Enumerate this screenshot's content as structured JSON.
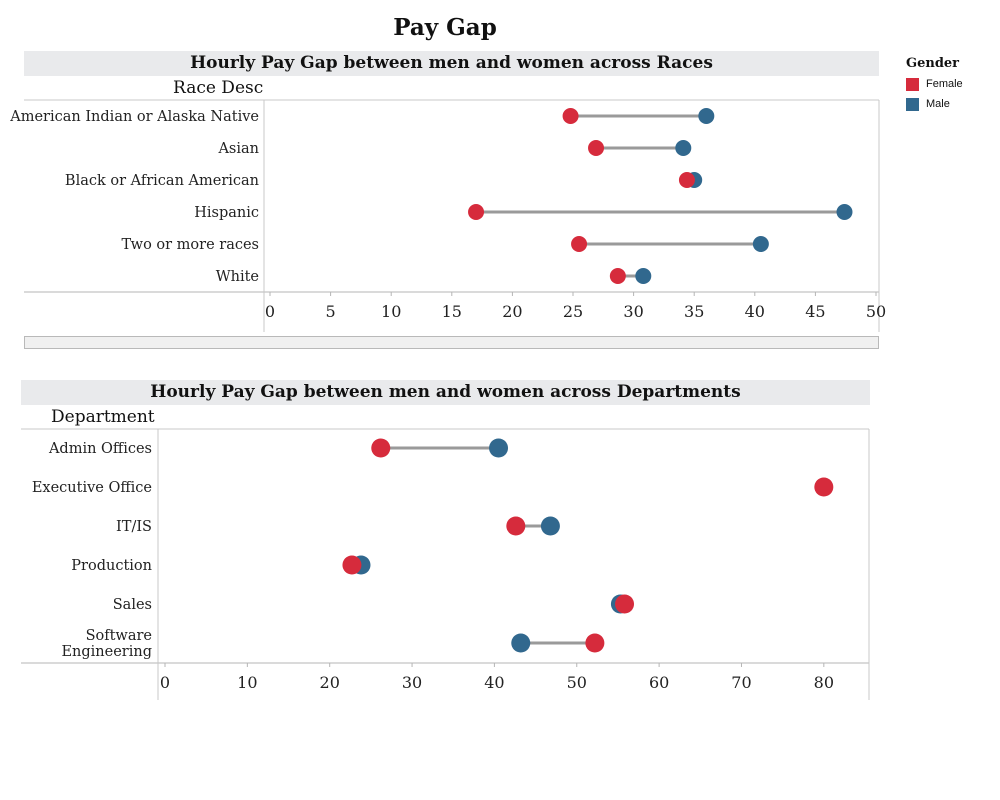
{
  "page_title": "Pay Gap",
  "legend": {
    "title": "Gender",
    "items": [
      {
        "label": "Female",
        "color": "#d62b3c"
      },
      {
        "label": "Male",
        "color": "#31688e"
      }
    ]
  },
  "chart_data": [
    {
      "type": "dumbbell",
      "title": "Hourly Pay Gap between men and women across Races",
      "row_header": "Race Desc",
      "categories": [
        "American Indian or Alaska Native",
        "Asian",
        "Black or African American",
        "Hispanic",
        "Two or more races",
        "White"
      ],
      "series": [
        {
          "name": "Female",
          "color": "#d62b3c",
          "values": [
            24.8,
            26.9,
            34.4,
            17.0,
            25.5,
            28.7
          ]
        },
        {
          "name": "Male",
          "color": "#31688e",
          "values": [
            36.0,
            34.1,
            35.0,
            47.4,
            40.5,
            30.8
          ]
        }
      ],
      "xlim": [
        0,
        50
      ],
      "xticks": [
        "0",
        "5",
        "10",
        "15",
        "20",
        "25",
        "30",
        "35",
        "40",
        "45",
        "50"
      ]
    },
    {
      "type": "dumbbell",
      "title": "Hourly Pay Gap between men and women across Departments",
      "row_header": "Department",
      "categories": [
        "Admin Offices",
        "Executive Office",
        "IT/IS",
        "Production",
        "Sales",
        "Software Engineering"
      ],
      "series": [
        {
          "name": "Female",
          "color": "#d62b3c",
          "values": [
            26.2,
            80.0,
            42.6,
            22.7,
            55.8,
            52.2
          ]
        },
        {
          "name": "Male",
          "color": "#31688e",
          "values": [
            40.5,
            null,
            46.8,
            23.8,
            55.3,
            43.2
          ]
        }
      ],
      "xlim": [
        0,
        85
      ],
      "xticks": [
        "0",
        "10",
        "20",
        "30",
        "40",
        "50",
        "60",
        "70",
        "80"
      ]
    }
  ]
}
